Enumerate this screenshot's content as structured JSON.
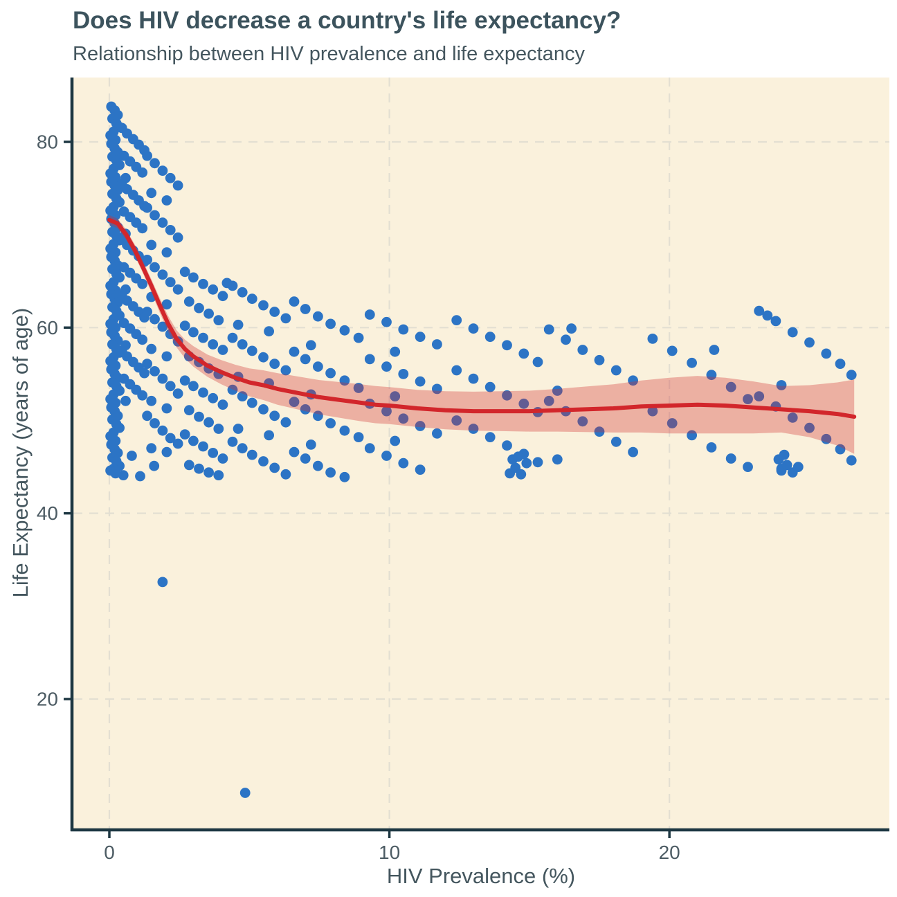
{
  "chart_data": {
    "type": "scatter",
    "title": "Does HIV decrease a country's life expectancy?",
    "subtitle": "Relationship between HIV prevalence and life expectancy",
    "xlabel": "HIV Prevalence (%)",
    "ylabel": "Life Expectancy (years of age)",
    "x_ticks": [
      0,
      10,
      20
    ],
    "y_ticks": [
      20,
      40,
      60,
      80
    ],
    "xlim": [
      -1.285,
      27.855
    ],
    "ylim": [
      6.06,
      86.93
    ],
    "grid": "dashed-major",
    "legend": "none",
    "colors": {
      "panel_bg": "#FAF1DC",
      "grid": "#E3DFD2",
      "point": "#2C74C5",
      "trend_line": "#D2262B",
      "confidence_band": "rgba(210,45,45,0.33)",
      "axis": "#1D3742",
      "tick_text": "#4C5B63",
      "title_text": "#3C535D",
      "label_text": "#44565E"
    },
    "smooth": [
      [
        0,
        71.6,
        0.5
      ],
      [
        0.3,
        71.2,
        0.52
      ],
      [
        0.6,
        70.0,
        0.55
      ],
      [
        0.9,
        68.4,
        0.6
      ],
      [
        1.2,
        66.5,
        0.65
      ],
      [
        1.5,
        64.5,
        0.7
      ],
      [
        1.8,
        62.4,
        0.78
      ],
      [
        2.1,
        60.4,
        0.85
      ],
      [
        2.4,
        58.8,
        0.92
      ],
      [
        2.7,
        57.7,
        1.0
      ],
      [
        3,
        56.9,
        1.1
      ],
      [
        3.5,
        55.9,
        1.2
      ],
      [
        4,
        55.2,
        1.3
      ],
      [
        4.5,
        54.6,
        1.4
      ],
      [
        5,
        54.1,
        1.5
      ],
      [
        5.5,
        53.8,
        1.6
      ],
      [
        6,
        53.4,
        1.7
      ],
      [
        6.5,
        53.1,
        1.75
      ],
      [
        7,
        52.8,
        1.8
      ],
      [
        7.5,
        52.5,
        1.85
      ],
      [
        8,
        52.3,
        1.9
      ],
      [
        8.5,
        52.1,
        1.95
      ],
      [
        9,
        51.9,
        2.0
      ],
      [
        9.5,
        51.7,
        2.0
      ],
      [
        10,
        51.6,
        2.0
      ],
      [
        11,
        51.3,
        2.0
      ],
      [
        12,
        51.1,
        2.05
      ],
      [
        13,
        51.0,
        2.1
      ],
      [
        14,
        51.0,
        2.15
      ],
      [
        15,
        51.0,
        2.2
      ],
      [
        16,
        51.1,
        2.3
      ],
      [
        17,
        51.2,
        2.45
      ],
      [
        18,
        51.3,
        2.6
      ],
      [
        19,
        51.5,
        2.8
      ],
      [
        20,
        51.6,
        3.0
      ],
      [
        21,
        51.7,
        3.1
      ],
      [
        22,
        51.6,
        3.0
      ],
      [
        23,
        51.4,
        2.8
      ],
      [
        24,
        51.2,
        2.5
      ],
      [
        25,
        51.0,
        2.8
      ],
      [
        26,
        50.7,
        3.4
      ],
      [
        26.6,
        50.4,
        4.0
      ]
    ],
    "points": [
      [
        0.07,
        83.8
      ],
      [
        0.19,
        83.4
      ],
      [
        0.3,
        82.9
      ],
      [
        0.11,
        82.5
      ],
      [
        0.25,
        82.0
      ],
      [
        0.36,
        81.6
      ],
      [
        0.15,
        81.1
      ],
      [
        0.04,
        80.7
      ],
      [
        0.22,
        80.2
      ],
      [
        0.07,
        79.8
      ],
      [
        0.19,
        79.3
      ],
      [
        0.3,
        78.9
      ],
      [
        0.11,
        78.4
      ],
      [
        0.25,
        78.0
      ],
      [
        0.36,
        77.5
      ],
      [
        0.15,
        77.1
      ],
      [
        0.04,
        76.6
      ],
      [
        0.22,
        76.2
      ],
      [
        0.07,
        75.7
      ],
      [
        0.19,
        75.3
      ],
      [
        0.3,
        74.8
      ],
      [
        0.11,
        74.4
      ],
      [
        0.25,
        73.9
      ],
      [
        0.36,
        73.5
      ],
      [
        0.15,
        73.0
      ],
      [
        0.04,
        72.6
      ],
      [
        0.22,
        72.1
      ],
      [
        0.07,
        71.7
      ],
      [
        0.19,
        71.2
      ],
      [
        0.3,
        70.8
      ],
      [
        0.11,
        70.3
      ],
      [
        0.25,
        69.9
      ],
      [
        0.36,
        69.4
      ],
      [
        0.15,
        69.0
      ],
      [
        0.04,
        68.5
      ],
      [
        0.22,
        68.1
      ],
      [
        0.07,
        67.6
      ],
      [
        0.19,
        67.2
      ],
      [
        0.3,
        66.7
      ],
      [
        0.11,
        66.3
      ],
      [
        0.25,
        65.8
      ],
      [
        0.36,
        65.4
      ],
      [
        0.15,
        64.9
      ],
      [
        0.04,
        64.5
      ],
      [
        0.22,
        64.0
      ],
      [
        0.07,
        63.6
      ],
      [
        0.19,
        63.1
      ],
      [
        0.3,
        62.7
      ],
      [
        0.11,
        62.2
      ],
      [
        0.25,
        61.8
      ],
      [
        0.36,
        61.3
      ],
      [
        0.15,
        60.9
      ],
      [
        0.04,
        60.4
      ],
      [
        0.22,
        60.0
      ],
      [
        0.07,
        59.5
      ],
      [
        0.19,
        59.1
      ],
      [
        0.3,
        58.6
      ],
      [
        0.11,
        58.2
      ],
      [
        0.25,
        57.7
      ],
      [
        0.36,
        57.3
      ],
      [
        0.15,
        56.8
      ],
      [
        0.04,
        56.4
      ],
      [
        0.22,
        55.9
      ],
      [
        0.07,
        55.5
      ],
      [
        0.19,
        55.0
      ],
      [
        0.3,
        54.6
      ],
      [
        0.11,
        54.1
      ],
      [
        0.25,
        53.7
      ],
      [
        0.36,
        53.2
      ],
      [
        0.15,
        52.8
      ],
      [
        0.04,
        52.3
      ],
      [
        0.22,
        51.9
      ],
      [
        0.07,
        51.4
      ],
      [
        0.19,
        51.0
      ],
      [
        0.3,
        50.5
      ],
      [
        0.11,
        50.1
      ],
      [
        0.25,
        49.6
      ],
      [
        0.36,
        49.2
      ],
      [
        0.15,
        48.7
      ],
      [
        0.04,
        48.3
      ],
      [
        0.22,
        47.8
      ],
      [
        0.07,
        47.4
      ],
      [
        0.19,
        46.9
      ],
      [
        0.3,
        46.5
      ],
      [
        0.11,
        46.0
      ],
      [
        0.25,
        45.6
      ],
      [
        0.36,
        45.1
      ],
      [
        0.15,
        44.8
      ],
      [
        0.04,
        44.6
      ],
      [
        0.22,
        44.3
      ],
      [
        0.45,
        81.5
      ],
      [
        0.63,
        80.9
      ],
      [
        0.85,
        80.3
      ],
      [
        1.05,
        79.7
      ],
      [
        1.25,
        79.1
      ],
      [
        0.52,
        78.5
      ],
      [
        0.74,
        77.9
      ],
      [
        0.96,
        77.3
      ],
      [
        1.18,
        76.7
      ],
      [
        0.58,
        76.1
      ],
      [
        0.45,
        75.5
      ],
      [
        0.63,
        74.9
      ],
      [
        0.85,
        74.3
      ],
      [
        1.05,
        73.7
      ],
      [
        1.25,
        73.1
      ],
      [
        0.52,
        72.5
      ],
      [
        0.74,
        71.9
      ],
      [
        0.96,
        71.3
      ],
      [
        1.18,
        70.7
      ],
      [
        0.58,
        70.1
      ],
      [
        0.45,
        69.5
      ],
      [
        0.63,
        68.9
      ],
      [
        0.85,
        68.3
      ],
      [
        1.05,
        67.7
      ],
      [
        1.25,
        67.1
      ],
      [
        0.52,
        66.5
      ],
      [
        0.74,
        65.9
      ],
      [
        0.96,
        65.3
      ],
      [
        1.18,
        64.7
      ],
      [
        0.58,
        64.1
      ],
      [
        0.45,
        63.5
      ],
      [
        0.63,
        62.9
      ],
      [
        0.85,
        62.3
      ],
      [
        1.05,
        61.7
      ],
      [
        1.25,
        61.1
      ],
      [
        0.52,
        60.5
      ],
      [
        0.74,
        59.9
      ],
      [
        0.96,
        59.3
      ],
      [
        1.18,
        58.7
      ],
      [
        0.58,
        58.1
      ],
      [
        0.45,
        57.5
      ],
      [
        0.63,
        56.9
      ],
      [
        0.85,
        56.3
      ],
      [
        1.05,
        55.7
      ],
      [
        1.25,
        55.1
      ],
      [
        0.52,
        54.5
      ],
      [
        0.74,
        53.9
      ],
      [
        0.96,
        53.3
      ],
      [
        1.18,
        52.7
      ],
      [
        0.58,
        52.1
      ],
      [
        1.35,
        78.5
      ],
      [
        1.62,
        77.7
      ],
      [
        1.9,
        76.9
      ],
      [
        2.18,
        76.1
      ],
      [
        2.45,
        75.3
      ],
      [
        1.5,
        74.5
      ],
      [
        2.05,
        73.7
      ],
      [
        1.35,
        72.9
      ],
      [
        1.62,
        72.1
      ],
      [
        1.9,
        71.3
      ],
      [
        2.18,
        70.5
      ],
      [
        2.45,
        69.7
      ],
      [
        1.5,
        68.9
      ],
      [
        2.05,
        68.1
      ],
      [
        1.35,
        67.3
      ],
      [
        1.62,
        66.5
      ],
      [
        1.9,
        65.7
      ],
      [
        2.18,
        64.9
      ],
      [
        2.45,
        64.1
      ],
      [
        1.5,
        63.3
      ],
      [
        2.05,
        62.5
      ],
      [
        1.35,
        61.7
      ],
      [
        1.62,
        60.9
      ],
      [
        1.9,
        60.1
      ],
      [
        2.18,
        59.3
      ],
      [
        2.45,
        58.5
      ],
      [
        1.5,
        57.7
      ],
      [
        2.05,
        56.9
      ],
      [
        1.35,
        56.1
      ],
      [
        1.62,
        55.3
      ],
      [
        1.9,
        54.5
      ],
      [
        2.18,
        53.7
      ],
      [
        2.45,
        52.9
      ],
      [
        1.5,
        52.1
      ],
      [
        2.05,
        51.3
      ],
      [
        1.35,
        50.5
      ],
      [
        1.62,
        49.7
      ],
      [
        1.9,
        48.9
      ],
      [
        2.18,
        48.1
      ],
      [
        2.45,
        47.5
      ],
      [
        1.5,
        47.0
      ],
      [
        2.05,
        46.6
      ],
      [
        2.7,
        66.0
      ],
      [
        3.0,
        65.4
      ],
      [
        3.35,
        64.7
      ],
      [
        3.7,
        64.1
      ],
      [
        4.05,
        63.4
      ],
      [
        2.85,
        62.8
      ],
      [
        3.2,
        62.1
      ],
      [
        3.55,
        61.5
      ],
      [
        3.9,
        60.8
      ],
      [
        2.7,
        60.2
      ],
      [
        3.0,
        59.5
      ],
      [
        3.35,
        58.9
      ],
      [
        3.7,
        58.2
      ],
      [
        4.05,
        57.6
      ],
      [
        2.85,
        56.9
      ],
      [
        3.2,
        56.3
      ],
      [
        3.55,
        55.6
      ],
      [
        3.9,
        55.0
      ],
      [
        2.7,
        54.3
      ],
      [
        3.0,
        53.7
      ],
      [
        3.35,
        53.0
      ],
      [
        3.7,
        52.4
      ],
      [
        4.05,
        51.7
      ],
      [
        2.85,
        51.1
      ],
      [
        3.2,
        50.4
      ],
      [
        3.55,
        49.8
      ],
      [
        3.9,
        49.1
      ],
      [
        2.7,
        48.5
      ],
      [
        3.0,
        47.8
      ],
      [
        3.35,
        47.2
      ],
      [
        3.7,
        46.5
      ],
      [
        4.05,
        45.9
      ],
      [
        2.85,
        45.2
      ],
      [
        3.2,
        44.8
      ],
      [
        3.55,
        44.4
      ],
      [
        3.9,
        44.1
      ],
      [
        4.4,
        64.5
      ],
      [
        4.75,
        63.8
      ],
      [
        5.1,
        63.1
      ],
      [
        5.5,
        62.4
      ],
      [
        5.9,
        61.7
      ],
      [
        6.3,
        61.0
      ],
      [
        4.6,
        60.3
      ],
      [
        5.7,
        59.6
      ],
      [
        4.4,
        58.9
      ],
      [
        4.75,
        58.2
      ],
      [
        5.1,
        57.5
      ],
      [
        5.5,
        56.8
      ],
      [
        5.9,
        56.1
      ],
      [
        6.3,
        55.4
      ],
      [
        4.6,
        54.7
      ],
      [
        5.7,
        54.0
      ],
      [
        4.4,
        53.3
      ],
      [
        4.75,
        52.6
      ],
      [
        5.1,
        51.9
      ],
      [
        5.5,
        51.2
      ],
      [
        5.9,
        50.5
      ],
      [
        6.3,
        49.8
      ],
      [
        4.6,
        49.1
      ],
      [
        5.7,
        48.4
      ],
      [
        4.4,
        47.7
      ],
      [
        4.75,
        47.0
      ],
      [
        5.1,
        46.3
      ],
      [
        5.5,
        45.6
      ],
      [
        5.9,
        44.9
      ],
      [
        6.3,
        44.2
      ],
      [
        6.6,
        62.8
      ],
      [
        7.0,
        62.0
      ],
      [
        7.45,
        61.2
      ],
      [
        7.9,
        60.4
      ],
      [
        8.4,
        59.7
      ],
      [
        8.9,
        58.9
      ],
      [
        7.2,
        58.1
      ],
      [
        6.6,
        57.4
      ],
      [
        7.0,
        56.6
      ],
      [
        7.45,
        55.8
      ],
      [
        7.9,
        55.1
      ],
      [
        8.4,
        54.3
      ],
      [
        8.9,
        53.5
      ],
      [
        7.2,
        52.8
      ],
      [
        6.6,
        52.0
      ],
      [
        7.0,
        51.2
      ],
      [
        7.45,
        50.5
      ],
      [
        7.9,
        49.7
      ],
      [
        8.4,
        48.9
      ],
      [
        8.9,
        48.2
      ],
      [
        7.2,
        47.4
      ],
      [
        6.6,
        46.6
      ],
      [
        7.0,
        45.9
      ],
      [
        7.45,
        45.1
      ],
      [
        7.9,
        44.4
      ],
      [
        8.4,
        43.9
      ],
      [
        9.3,
        61.4
      ],
      [
        9.9,
        60.6
      ],
      [
        10.5,
        59.8
      ],
      [
        11.1,
        59.0
      ],
      [
        11.7,
        58.2
      ],
      [
        10.2,
        57.4
      ],
      [
        9.3,
        56.6
      ],
      [
        9.9,
        55.8
      ],
      [
        10.5,
        55.0
      ],
      [
        11.1,
        54.2
      ],
      [
        11.7,
        53.4
      ],
      [
        10.2,
        52.6
      ],
      [
        9.3,
        51.8
      ],
      [
        9.9,
        51.0
      ],
      [
        10.5,
        50.2
      ],
      [
        11.1,
        49.4
      ],
      [
        11.7,
        48.6
      ],
      [
        10.2,
        47.8
      ],
      [
        9.3,
        47.0
      ],
      [
        9.9,
        46.2
      ],
      [
        10.5,
        45.4
      ],
      [
        11.1,
        44.7
      ],
      [
        12.4,
        60.8
      ],
      [
        13.0,
        59.9
      ],
      [
        13.6,
        59.0
      ],
      [
        14.2,
        58.1
      ],
      [
        14.8,
        57.2
      ],
      [
        15.3,
        56.3
      ],
      [
        12.4,
        55.4
      ],
      [
        13.0,
        54.5
      ],
      [
        13.6,
        53.6
      ],
      [
        14.2,
        52.7
      ],
      [
        14.8,
        51.8
      ],
      [
        15.3,
        50.9
      ],
      [
        12.4,
        50.0
      ],
      [
        13.0,
        49.1
      ],
      [
        13.6,
        48.2
      ],
      [
        14.2,
        47.3
      ],
      [
        14.8,
        46.4
      ],
      [
        15.3,
        45.5
      ],
      [
        14.3,
        44.3
      ],
      [
        14.5,
        44.9
      ],
      [
        14.7,
        44.2
      ],
      [
        14.9,
        45.4
      ],
      [
        14.6,
        46.1
      ],
      [
        14.4,
        45.8
      ],
      [
        15.7,
        59.8
      ],
      [
        16.3,
        58.7
      ],
      [
        16.9,
        57.6
      ],
      [
        17.5,
        56.5
      ],
      [
        18.1,
        55.4
      ],
      [
        18.7,
        54.3
      ],
      [
        16.0,
        53.2
      ],
      [
        15.7,
        52.1
      ],
      [
        16.3,
        51.0
      ],
      [
        16.9,
        49.9
      ],
      [
        17.5,
        48.8
      ],
      [
        18.1,
        47.7
      ],
      [
        18.7,
        46.6
      ],
      [
        16.0,
        45.8
      ],
      [
        19.4,
        58.8
      ],
      [
        20.1,
        57.5
      ],
      [
        20.8,
        56.2
      ],
      [
        21.5,
        54.9
      ],
      [
        22.2,
        53.6
      ],
      [
        22.8,
        52.3
      ],
      [
        19.4,
        51.0
      ],
      [
        20.1,
        49.7
      ],
      [
        20.8,
        48.4
      ],
      [
        21.5,
        47.1
      ],
      [
        22.2,
        45.9
      ],
      [
        22.8,
        45.0
      ],
      [
        23.2,
        61.8
      ],
      [
        23.8,
        60.7
      ],
      [
        24.4,
        59.5
      ],
      [
        25.0,
        58.4
      ],
      [
        25.6,
        57.2
      ],
      [
        26.1,
        56.1
      ],
      [
        26.5,
        54.9
      ],
      [
        24.0,
        53.8
      ],
      [
        23.2,
        52.6
      ],
      [
        23.8,
        51.5
      ],
      [
        24.4,
        50.3
      ],
      [
        25.0,
        49.2
      ],
      [
        25.6,
        48.0
      ],
      [
        26.1,
        46.9
      ],
      [
        26.5,
        45.7
      ],
      [
        24.0,
        44.8
      ],
      [
        24.0,
        44.6
      ],
      [
        24.2,
        45.2
      ],
      [
        24.4,
        44.4
      ],
      [
        23.9,
        45.8
      ],
      [
        24.6,
        45.0
      ],
      [
        24.1,
        46.3
      ],
      [
        4.2,
        64.8
      ],
      [
        16.5,
        59.9
      ],
      [
        21.6,
        57.6
      ],
      [
        23.5,
        61.3
      ],
      [
        0.5,
        44.1
      ],
      [
        1.1,
        44.0
      ],
      [
        0.8,
        46.2
      ],
      [
        1.6,
        45.1
      ],
      [
        1.9,
        32.6
      ],
      [
        4.85,
        9.9
      ]
    ]
  }
}
